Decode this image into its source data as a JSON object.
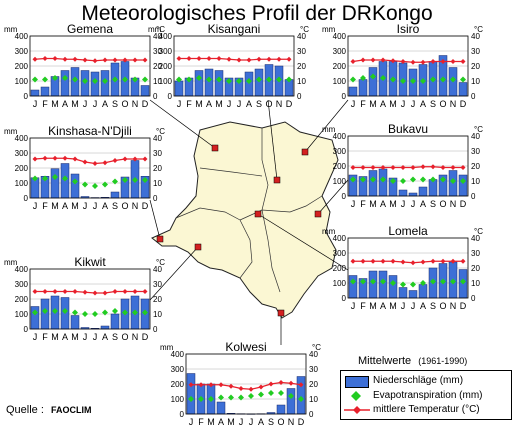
{
  "title": "Meteorologisches Profil der DRKongo",
  "source_label": "Quelle :",
  "source_value": "FAOCLIM",
  "legend": {
    "heading": "Mittelwerte",
    "period": "(1961-1990)",
    "precip": "Niederschläge (mm)",
    "evap": "Evapotranspiration (mm)",
    "temp": "mittlere Temperatur (°C)"
  },
  "colors": {
    "bar": "#3d6fd6",
    "evap": "#22cc22",
    "temp": "#e8202c",
    "map_fill": "#fbf7d3",
    "station": "#d42020"
  },
  "chart_data": [
    {
      "type": "bar",
      "title": "Gemena",
      "ylabel_left": "mm",
      "ylabel_right": "°C",
      "categories": [
        "J",
        "F",
        "M",
        "A",
        "M",
        "J",
        "J",
        "A",
        "S",
        "O",
        "N",
        "D"
      ],
      "ylim": [
        0,
        400
      ],
      "y2lim": [
        0,
        40
      ],
      "yticks": [
        0,
        100,
        200,
        300,
        400
      ],
      "y2ticks": [
        0,
        10,
        20,
        30,
        40
      ],
      "series": [
        {
          "name": "Niederschläge (mm)",
          "values": [
            40,
            60,
            130,
            170,
            190,
            170,
            160,
            170,
            220,
            230,
            120,
            70
          ]
        },
        {
          "name": "Evapotranspiration (mm)",
          "values": [
            110,
            110,
            120,
            120,
            110,
            100,
            100,
            100,
            110,
            110,
            110,
            110
          ]
        },
        {
          "name": "mittlere Temperatur (°C)",
          "values": [
            24.5,
            25,
            25,
            24.5,
            24.5,
            24,
            23.5,
            24,
            24,
            24,
            24,
            24
          ]
        }
      ]
    },
    {
      "type": "bar",
      "title": "Kisangani",
      "ylabel_left": "mm",
      "ylabel_right": "°C",
      "categories": [
        "J",
        "F",
        "M",
        "A",
        "M",
        "J",
        "J",
        "A",
        "S",
        "O",
        "N",
        "D"
      ],
      "ylim": [
        0,
        400
      ],
      "y2lim": [
        0,
        40
      ],
      "yticks": [
        0,
        100,
        200,
        300,
        400
      ],
      "y2ticks": [
        0,
        10,
        20,
        30,
        40
      ],
      "series": [
        {
          "name": "Niederschläge (mm)",
          "values": [
            100,
            120,
            170,
            180,
            170,
            120,
            120,
            160,
            180,
            210,
            200,
            110
          ]
        },
        {
          "name": "Evapotranspiration (mm)",
          "values": [
            110,
            110,
            120,
            110,
            110,
            100,
            100,
            100,
            110,
            110,
            110,
            110
          ]
        },
        {
          "name": "mittlere Temperatur (°C)",
          "values": [
            25,
            25,
            25,
            25,
            25,
            24.5,
            24,
            24,
            24.5,
            24.5,
            24.5,
            24.5
          ]
        }
      ]
    },
    {
      "type": "bar",
      "title": "Isiro",
      "ylabel_left": "mm",
      "ylabel_right": "°C",
      "categories": [
        "J",
        "F",
        "M",
        "A",
        "M",
        "J",
        "J",
        "A",
        "S",
        "O",
        "N",
        "D"
      ],
      "ylim": [
        0,
        400
      ],
      "y2lim": [
        0,
        40
      ],
      "yticks": [
        0,
        100,
        200,
        300,
        400
      ],
      "y2ticks": [
        0,
        10,
        20,
        30,
        40
      ],
      "series": [
        {
          "name": "Niederschläge (mm)",
          "values": [
            60,
            110,
            190,
            230,
            230,
            220,
            180,
            210,
            230,
            270,
            190,
            90
          ]
        },
        {
          "name": "Evapotranspiration (mm)",
          "values": [
            110,
            120,
            130,
            120,
            110,
            100,
            100,
            100,
            110,
            110,
            110,
            110
          ]
        },
        {
          "name": "mittlere Temperatur (°C)",
          "values": [
            23,
            24,
            24,
            24,
            23.5,
            23,
            22.5,
            22.5,
            23,
            23,
            23,
            23
          ]
        }
      ]
    },
    {
      "type": "bar",
      "title": "Kinshasa-N'Djili",
      "ylabel_left": "mm",
      "ylabel_right": "°C",
      "categories": [
        "J",
        "F",
        "M",
        "A",
        "M",
        "J",
        "J",
        "A",
        "S",
        "O",
        "N",
        "D"
      ],
      "ylim": [
        0,
        400
      ],
      "y2lim": [
        0,
        40
      ],
      "yticks": [
        0,
        100,
        200,
        300,
        400
      ],
      "y2ticks": [
        0,
        10,
        20,
        30,
        40
      ],
      "series": [
        {
          "name": "Niederschläge (mm)",
          "values": [
            135,
            145,
            195,
            230,
            160,
            10,
            3,
            5,
            40,
            140,
            250,
            145
          ]
        },
        {
          "name": "Evapotranspiration (mm)",
          "values": [
            130,
            130,
            140,
            130,
            110,
            90,
            80,
            90,
            110,
            120,
            120,
            120
          ]
        },
        {
          "name": "mittlere Temperatur (°C)",
          "values": [
            26,
            26.5,
            26.5,
            26.5,
            26,
            24,
            23,
            23.5,
            25,
            26,
            26,
            26
          ]
        }
      ]
    },
    {
      "type": "bar",
      "title": "Bukavu",
      "ylabel_left": "mm",
      "ylabel_right": "°C",
      "categories": [
        "J",
        "F",
        "M",
        "A",
        "M",
        "J",
        "J",
        "A",
        "S",
        "O",
        "N",
        "D"
      ],
      "ylim": [
        0,
        400
      ],
      "y2lim": [
        0,
        40
      ],
      "yticks": [
        0,
        100,
        200,
        300,
        400
      ],
      "y2ticks": [
        0,
        10,
        20,
        30,
        40
      ],
      "series": [
        {
          "name": "Niederschläge (mm)",
          "values": [
            140,
            130,
            170,
            180,
            120,
            40,
            20,
            60,
            110,
            140,
            170,
            140
          ]
        },
        {
          "name": "Evapotranspiration (mm)",
          "values": [
            110,
            110,
            110,
            110,
            100,
            100,
            110,
            110,
            110,
            110,
            100,
            100
          ]
        },
        {
          "name": "mittlere Temperatur (°C)",
          "values": [
            19,
            19,
            19,
            19,
            19,
            19,
            19,
            19.5,
            19.5,
            19,
            19,
            19
          ]
        }
      ]
    },
    {
      "type": "bar",
      "title": "Lomela",
      "ylabel_left": "mm",
      "ylabel_right": "°C",
      "categories": [
        "J",
        "F",
        "M",
        "A",
        "M",
        "J",
        "J",
        "A",
        "S",
        "O",
        "N",
        "D"
      ],
      "ylim": [
        0,
        400
      ],
      "y2lim": [
        0,
        40
      ],
      "yticks": [
        0,
        100,
        200,
        300,
        400
      ],
      "y2ticks": [
        0,
        10,
        20,
        30,
        40
      ],
      "series": [
        {
          "name": "Niederschläge (mm)",
          "values": [
            150,
            130,
            180,
            180,
            150,
            70,
            50,
            90,
            200,
            230,
            240,
            190
          ]
        },
        {
          "name": "Evapotranspiration (mm)",
          "values": [
            110,
            110,
            110,
            110,
            100,
            90,
            90,
            100,
            110,
            110,
            110,
            110
          ]
        },
        {
          "name": "mittlere Temperatur (°C)",
          "values": [
            24.5,
            24.5,
            24.5,
            24.5,
            24.5,
            24,
            23.5,
            24,
            24.5,
            24.5,
            24.5,
            24.5
          ]
        }
      ]
    },
    {
      "type": "bar",
      "title": "Kikwit",
      "ylabel_left": "mm",
      "ylabel_right": "°C",
      "categories": [
        "J",
        "F",
        "M",
        "A",
        "M",
        "J",
        "J",
        "A",
        "S",
        "O",
        "N",
        "D"
      ],
      "ylim": [
        0,
        400
      ],
      "y2lim": [
        0,
        40
      ],
      "yticks": [
        0,
        100,
        200,
        300,
        400
      ],
      "y2ticks": [
        0,
        10,
        20,
        30,
        40
      ],
      "series": [
        {
          "name": "Niederschläge (mm)",
          "values": [
            150,
            200,
            220,
            210,
            90,
            10,
            5,
            20,
            100,
            200,
            220,
            200
          ]
        },
        {
          "name": "Evapotranspiration (mm)",
          "values": [
            110,
            120,
            120,
            120,
            110,
            100,
            100,
            110,
            120,
            110,
            110,
            110
          ]
        },
        {
          "name": "mittlere Temperatur (°C)",
          "values": [
            25,
            25,
            25,
            25,
            25,
            24.5,
            24,
            24,
            25,
            25,
            25,
            25
          ]
        }
      ]
    },
    {
      "type": "bar",
      "title": "Kolwesi",
      "ylabel_left": "mm",
      "ylabel_right": "°C",
      "categories": [
        "J",
        "F",
        "M",
        "A",
        "M",
        "J",
        "J",
        "A",
        "S",
        "O",
        "N",
        "D"
      ],
      "ylim": [
        0,
        400
      ],
      "y2lim": [
        0,
        40
      ],
      "yticks": [
        0,
        100,
        200,
        300,
        400
      ],
      "y2ticks": [
        0,
        10,
        20,
        30,
        40
      ],
      "series": [
        {
          "name": "Niederschläge (mm)",
          "values": [
            270,
            200,
            200,
            80,
            5,
            2,
            1,
            2,
            10,
            60,
            170,
            250
          ]
        },
        {
          "name": "Evapotranspiration (mm)",
          "values": [
            100,
            100,
            100,
            110,
            110,
            110,
            120,
            130,
            140,
            140,
            120,
            100
          ]
        },
        {
          "name": "mittlere Temperatur (°C)",
          "values": [
            19.5,
            19.5,
            19.5,
            19.5,
            18.5,
            17,
            16.5,
            18,
            20,
            21,
            20.5,
            19.5
          ]
        }
      ]
    }
  ]
}
